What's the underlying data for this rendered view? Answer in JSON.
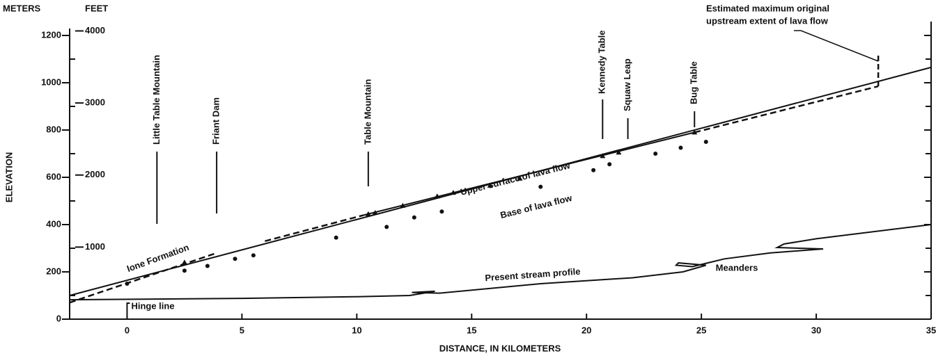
{
  "chart_data": {
    "type": "line",
    "xlabel": "DISTANCE, IN KILOMETERS",
    "ylabel": "ELEVATION",
    "y_unit_label": "METERS",
    "y2_unit_label": "FEET",
    "xlim": [
      -2.5,
      35
    ],
    "xticks": [
      0,
      5,
      10,
      15,
      20,
      25,
      30,
      35
    ],
    "ylim": [
      0,
      1200
    ],
    "yticks": [
      0,
      200,
      400,
      600,
      800,
      1000,
      1200
    ],
    "yticks_minor": [
      100,
      300,
      500,
      700,
      900,
      1100
    ],
    "y2lim": [
      0,
      3937
    ],
    "y2ticks": [
      1000,
      2000,
      3000,
      4000
    ],
    "color": "#111111",
    "series": [
      {
        "style": "solid",
        "x": [
          -2.5,
          35
        ],
        "values": [
          100,
          1065
        ]
      },
      {
        "style": "solid",
        "x": [
          10.3,
          24.7
        ],
        "values": [
          440,
          790
        ]
      },
      {
        "style": "dashed",
        "x": [
          -2.5,
          3.9,
          null,
          6,
          10.3,
          null,
          24.7,
          32.7
        ],
        "values": [
          70,
          280,
          null,
          330,
          440,
          null,
          790,
          985
        ]
      },
      {
        "style": "points",
        "marker": "circle",
        "x": [
          0,
          2.5,
          3.5,
          4.7,
          5.5,
          9.1,
          11.3,
          12.5,
          13.7,
          18,
          20.3,
          21,
          23,
          24.1,
          25.2
        ],
        "values": [
          150,
          205,
          225,
          255,
          270,
          345,
          390,
          430,
          455,
          560,
          630,
          655,
          700,
          725,
          750
        ]
      },
      {
        "style": "points",
        "marker": "triangle",
        "x": [
          2.5,
          10.5,
          10.8,
          12,
          13.5,
          14.2,
          15.8,
          17.1,
          20.7,
          21.4,
          24.7
        ],
        "values": [
          240,
          445,
          450,
          480,
          520,
          535,
          565,
          595,
          690,
          705,
          790
        ]
      },
      {
        "style": "solid",
        "x": [
          -2.5,
          5,
          10,
          12.3,
          13.4,
          12.4,
          13.6,
          18,
          22,
          24.2,
          25.2,
          24,
          23.9,
          24.6,
          26,
          28,
          30.3,
          28.3,
          28.6,
          30,
          35
        ],
        "values": [
          82,
          88,
          95,
          100,
          118,
          113,
          110,
          150,
          175,
          200,
          228,
          238,
          228,
          222,
          255,
          280,
          297,
          303,
          318,
          340,
          400
        ]
      }
    ],
    "landmarks": [
      {
        "label": "Little Table Mountain",
        "x": 1.3
      },
      {
        "label": "Friant Dam",
        "x": 3.9
      },
      {
        "label": "Table Mountain",
        "x": 10.5
      },
      {
        "label": "Kennedy Table",
        "x": 20.7
      },
      {
        "label": "Squaw Leap",
        "x": 21.8
      },
      {
        "label": "Bug Table",
        "x": 24.7
      }
    ],
    "hinge_line": {
      "label": "Hinge line",
      "x": 0
    },
    "max_extent": {
      "label_lines": [
        "Estimated maximum original",
        "upstream extent of lava flow"
      ],
      "x": 32.7
    },
    "annotations": [
      "Upper surface of lava flow",
      "Base of lava flow",
      "Ione Formation",
      "Present stream profile",
      "Meanders"
    ]
  }
}
